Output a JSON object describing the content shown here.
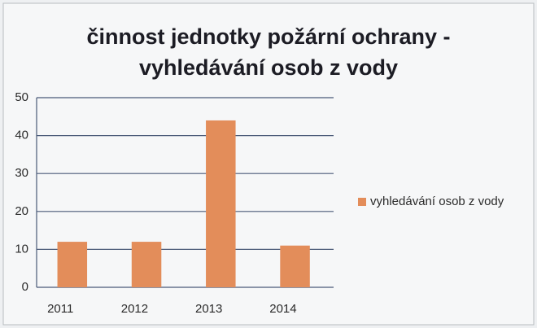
{
  "chart_data": {
    "type": "bar",
    "title": "činnost jednotky požární ochrany - vyhledávání osob z vody",
    "categories": [
      "2011",
      "2012",
      "2013",
      "2014"
    ],
    "series": [
      {
        "name": "vyhledávání osob z vody",
        "color": "#e38d5a",
        "values": [
          12,
          12,
          44,
          11
        ]
      }
    ],
    "ylim": [
      0,
      50
    ],
    "yticks": [
      0,
      10,
      20,
      30,
      40,
      50
    ],
    "grid": true,
    "legend": "right"
  }
}
